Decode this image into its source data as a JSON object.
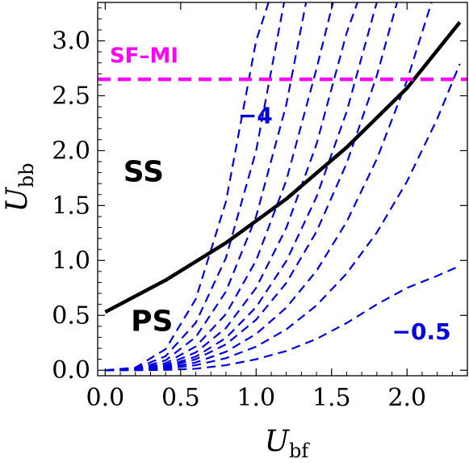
{
  "chart_data": {
    "type": "line",
    "xlabel": "U",
    "xlabel_sub": "bf",
    "ylabel": "U",
    "ylabel_sub": "bb",
    "xlim": [
      -0.05,
      2.4
    ],
    "ylim": [
      -0.05,
      3.35
    ],
    "xticks": [
      0.0,
      0.5,
      1.0,
      1.5,
      2.0
    ],
    "xtick_labels": [
      "0.0",
      "0.5",
      "1.0",
      "1.5",
      "2.0"
    ],
    "yticks": [
      0.0,
      0.5,
      1.0,
      1.5,
      2.0,
      2.5,
      3.0
    ],
    "ytick_labels": [
      "0.0",
      "0.5",
      "1.0",
      "1.5",
      "2.0",
      "2.5",
      "3.0"
    ],
    "grid": false,
    "solid_curve": {
      "color": "#000000",
      "x": [
        0.0,
        0.4,
        0.8,
        1.2,
        1.6,
        2.0,
        2.35
      ],
      "y": [
        0.53,
        0.82,
        1.16,
        1.56,
        2.03,
        2.57,
        3.17
      ]
    },
    "sf_mi_line": {
      "color": "#ff00ff",
      "y": 2.65
    },
    "dashed_curves": {
      "color": "#0000dd",
      "x": [
        0.0,
        0.2,
        0.4,
        0.6,
        0.8,
        1.0,
        1.2,
        1.4,
        1.6,
        1.8,
        2.0,
        2.2,
        2.35
      ],
      "series": [
        {
          "y": [
            0,
            0.024,
            0.192,
            0.648,
            1.536,
            3.0,
            5.184,
            8.232,
            12.288,
            17.496,
            24.0,
            31.944,
            38.9
          ]
        },
        {
          "y": [
            0,
            0.016,
            0.128,
            0.432,
            1.024,
            2.0,
            3.456,
            5.488,
            8.192,
            11.664,
            16.0,
            21.296,
            25.96
          ]
        },
        {
          "y": [
            0,
            0.011,
            0.09,
            0.302,
            0.717,
            1.4,
            2.419,
            3.842,
            5.734,
            8.165,
            11.2,
            14.907,
            18.17
          ]
        },
        {
          "y": [
            0,
            0.008,
            0.064,
            0.216,
            0.512,
            1.0,
            1.728,
            2.744,
            4.096,
            5.832,
            8.0,
            10.648,
            12.98
          ]
        },
        {
          "y": [
            0,
            0.006,
            0.048,
            0.162,
            0.384,
            0.75,
            1.296,
            2.058,
            3.072,
            4.374,
            6.0,
            7.986,
            9.73
          ]
        },
        {
          "y": [
            0,
            0.005,
            0.037,
            0.124,
            0.294,
            0.575,
            0.994,
            1.578,
            2.355,
            3.353,
            4.6,
            6.123,
            7.46
          ]
        },
        {
          "y": [
            0,
            0.004,
            0.03,
            0.1,
            0.236,
            0.46,
            0.795,
            1.262,
            1.884,
            2.683,
            3.68,
            4.898,
            5.97
          ]
        },
        {
          "y": [
            0,
            0.003,
            0.021,
            0.071,
            0.168,
            0.33,
            0.57,
            0.905,
            1.352,
            1.924,
            2.64,
            3.514,
            4.28
          ]
        },
        {
          "y": [
            0,
            0.002,
            0.014,
            0.046,
            0.11,
            0.215,
            0.372,
            0.59,
            0.881,
            1.254,
            1.72,
            2.289,
            2.79
          ]
        },
        {
          "y": [
            0,
            0.0,
            0.003,
            0.014,
            0.046,
            0.1,
            0.175,
            0.285,
            0.43,
            0.6,
            0.75,
            0.86,
            0.95
          ]
        }
      ]
    },
    "annotations": [
      {
        "text": "SF–MI",
        "x": 0.03,
        "y": 2.8,
        "color": "#ff00ff",
        "size": 26
      },
      {
        "text": "−4",
        "x": 0.88,
        "y": 2.25,
        "color": "#0000dd",
        "size": 28
      },
      {
        "text": "SS",
        "x": 0.12,
        "y": 1.72,
        "color": "#000000",
        "size": 36
      },
      {
        "text": "PS",
        "x": 0.17,
        "y": 0.36,
        "color": "#000000",
        "size": 36
      },
      {
        "text": "−0.5",
        "x": 1.9,
        "y": 0.28,
        "color": "#0000dd",
        "size": 28
      }
    ]
  }
}
